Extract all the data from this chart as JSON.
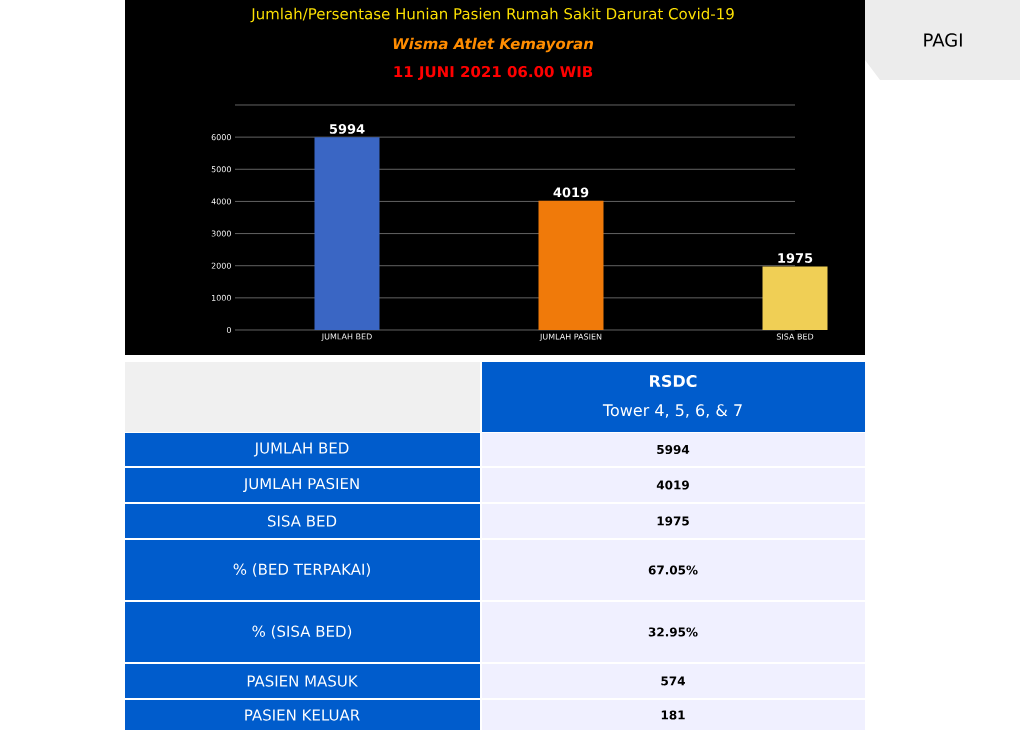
{
  "chart_data": {
    "type": "bar",
    "title": "Jumlah/Persentase Hunian Pasien Rumah Sakit Darurat Covid-19",
    "subtitle": "Wisma Atlet Kemayoran",
    "categories": [
      "JUMLAH BED",
      "JUMLAH PASIEN",
      "SISA BED"
    ],
    "values": [
      5994,
      4019,
      1975
    ],
    "colors": [
      "#3a66c4",
      "#f07a0a",
      "#f0cf55"
    ],
    "data_labels": true,
    "grid": "y",
    "ylim": [
      0,
      7000
    ],
    "yticks": [
      0,
      1000,
      2000,
      3000,
      4000,
      5000,
      6000,
      {
        "value": 7000,
        "label": null
      }
    ],
    "annotations": [
      "PAGI",
      "11 JUNI 2021 06.00 WIB",
      "RSDC",
      "Tower 4, 5, 6, & 7",
      "JUMLAH BED",
      "5994",
      "JUMLAH PASIEN",
      "4019",
      "SISA BED",
      "1975",
      "% (BED TERPAKAI)",
      "67.05%",
      "% (SISA BED)",
      "32.95%",
      "PASIEN MASUK",
      "574",
      "PASIEN KELUAR",
      "181"
    ]
  }
}
